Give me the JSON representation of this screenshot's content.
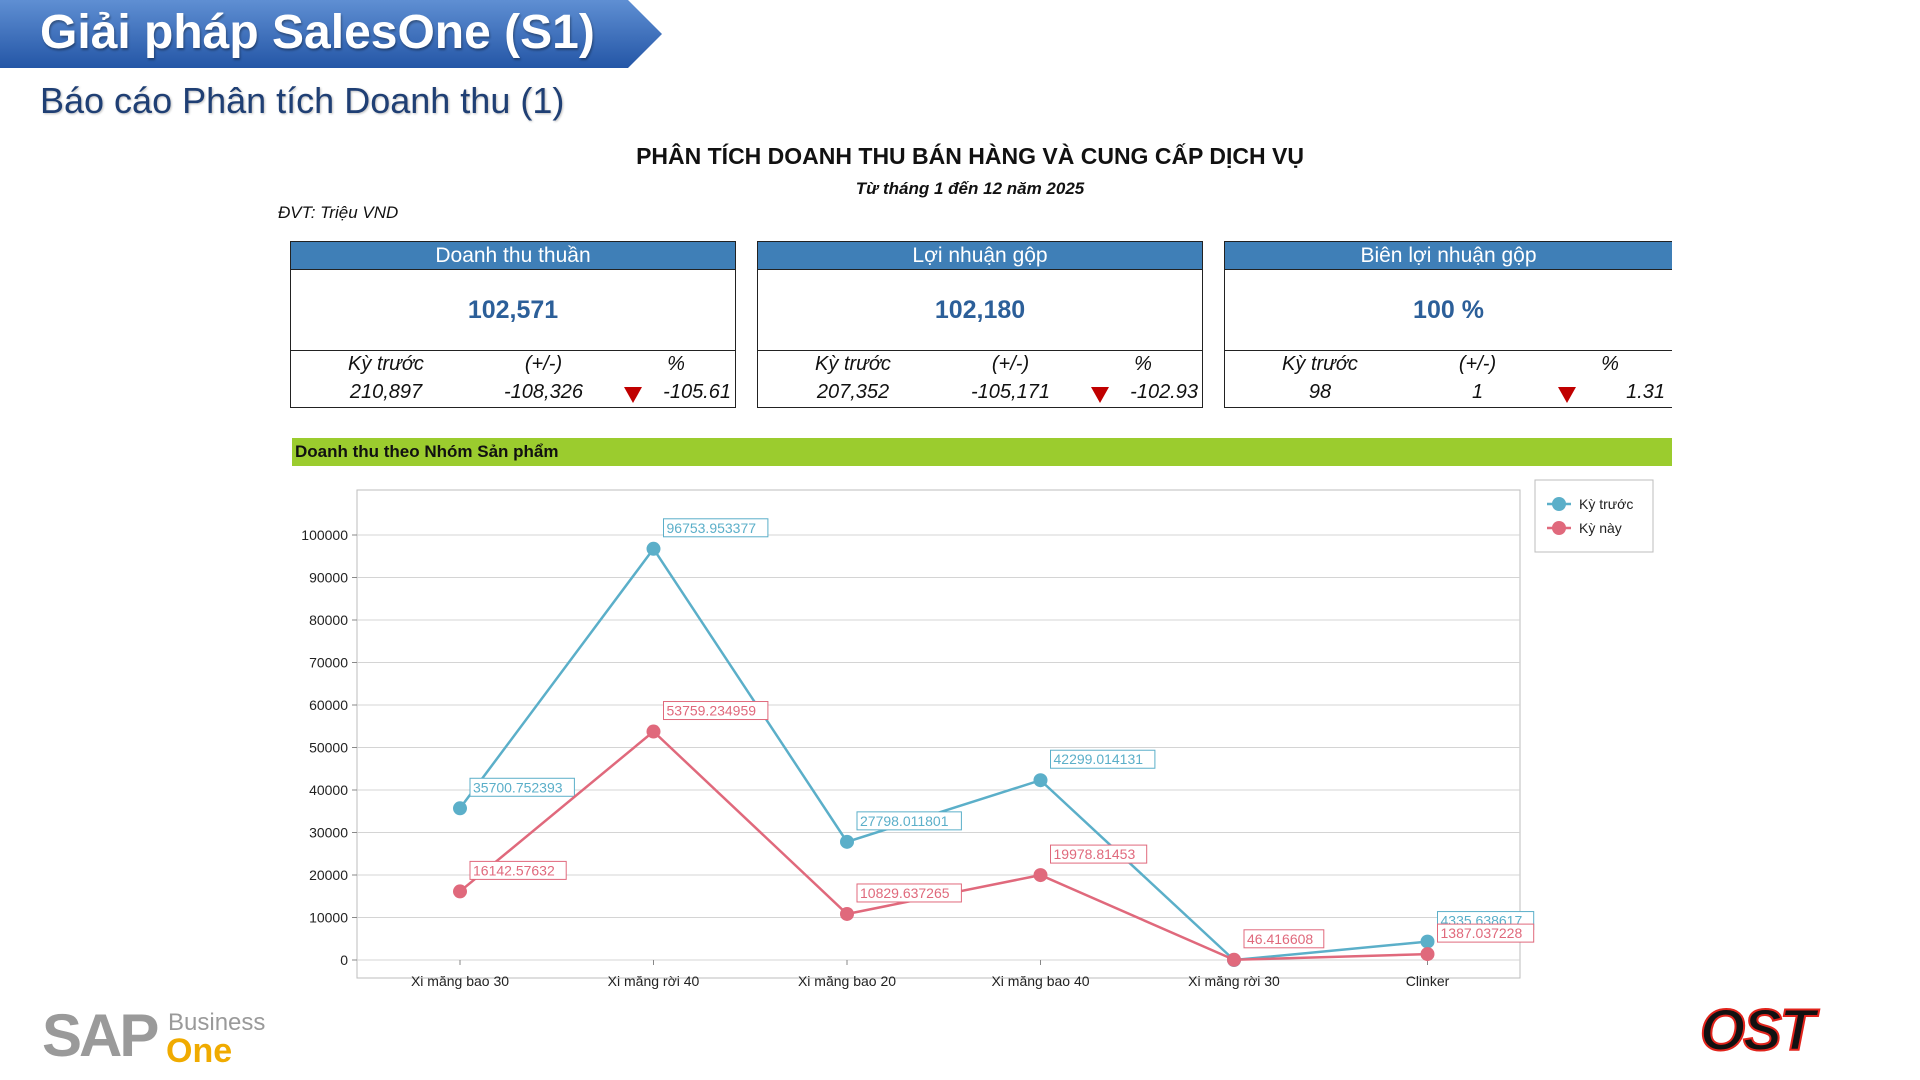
{
  "slide": {
    "title": "Giải pháp SalesOne (S1)",
    "subtitle": "Báo cáo Phân tích Doanh thu (1)"
  },
  "report": {
    "title": "PHÂN TÍCH DOANH THU BÁN HÀNG VÀ CUNG CẤP DỊCH VỤ",
    "period": "Từ tháng 1 đến 12 năm 2025",
    "unit": "ĐVT: Triệu VND"
  },
  "kpis": [
    {
      "title": "Doanh thu thuần",
      "value": "102,571",
      "prev_label": "Kỳ trước",
      "diff_label": "(+/-)",
      "pct_label": "%",
      "prev": "210,897",
      "diff": "-108,326",
      "pct": "-105.61"
    },
    {
      "title": "Lợi nhuận gộp",
      "value": "102,180",
      "prev_label": "Kỳ trước",
      "diff_label": "(+/-)",
      "pct_label": "%",
      "prev": "207,352",
      "diff": "-105,171",
      "pct": "-102.93"
    },
    {
      "title": "Biên lợi nhuận gộp",
      "value": "100 %",
      "prev_label": "Kỳ trước",
      "diff_label": "(+/-)",
      "pct_label": "%",
      "prev": "98",
      "diff": "1",
      "pct": "1.31"
    }
  ],
  "section_title": "Doanh thu theo Nhóm Sản phẩm",
  "chart_data": {
    "type": "line",
    "categories": [
      "Xi măng bao 30",
      "Xi măng rời 40",
      "Xi măng bao 20",
      "Xi măng bao 40",
      "Xi măng rời 30",
      "Clinker"
    ],
    "series": [
      {
        "name": "Kỳ trước",
        "color": "#5bafc9",
        "values": [
          35700.752393,
          96753.953377,
          27798.011801,
          42299.014131,
          0,
          4335.638617
        ],
        "labels": [
          "35700.752393",
          "96753.953377",
          "27798.011801",
          "42299.014131",
          "",
          "4335.638617"
        ]
      },
      {
        "name": "Kỳ này",
        "color": "#e0697c",
        "values": [
          16142.57632,
          53759.234959,
          10829.637265,
          19978.81453,
          46.416608,
          1387.037228
        ],
        "labels": [
          "16142.57632",
          "53759.234959",
          "10829.637265",
          "19978.81453",
          "46.416608",
          "1387.037228"
        ]
      }
    ],
    "y_ticks": [
      "0",
      "10000",
      "20000",
      "30000",
      "40000",
      "50000",
      "60000",
      "70000",
      "80000",
      "90000",
      "100000"
    ],
    "ylim": [
      0,
      100000
    ],
    "grid": true,
    "legend": "top-right"
  },
  "colors": {
    "banner": "#2f66b3",
    "kpi_header": "#3f7fb7",
    "kpi_value": "#2c5f99",
    "section_bar": "#9bcc2e",
    "down_arrow": "#c00000"
  },
  "logos": {
    "sap_left": "SAP",
    "sap_right_top": "Business",
    "sap_right_bottom": "One",
    "ost": "OST"
  }
}
